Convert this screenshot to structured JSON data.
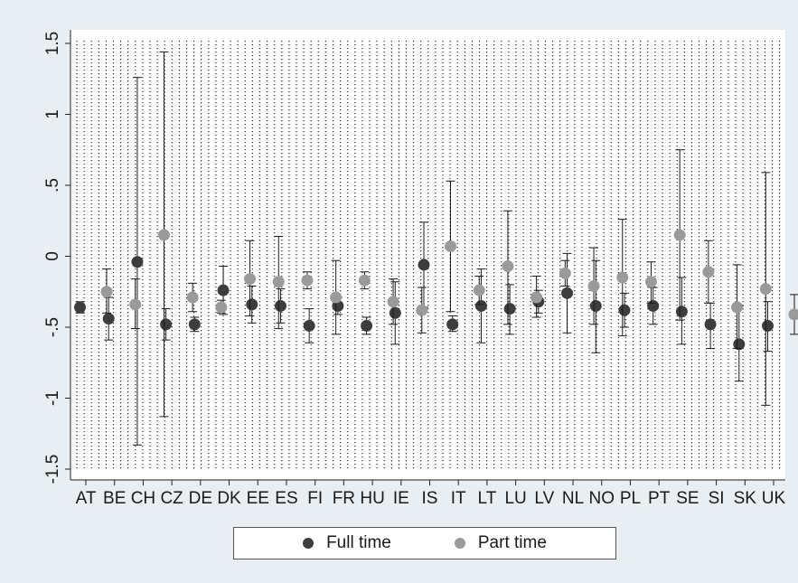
{
  "chart_data": {
    "type": "scatter",
    "title": "",
    "xlabel": "",
    "ylabel": "",
    "ylim": [
      -1.5,
      1.5
    ],
    "yticks": [
      -1.5,
      -1,
      -0.5,
      0,
      0.5,
      1,
      1.5
    ],
    "ytick_labels": [
      "-1.5",
      "-1",
      "-.5",
      "0",
      ".5",
      "1",
      "1.5"
    ],
    "categories": [
      "AT",
      "BE",
      "CH",
      "CZ",
      "DE",
      "DK",
      "EE",
      "ES",
      "FI",
      "FR",
      "HU",
      "IE",
      "IS",
      "IT",
      "LT",
      "LU",
      "LV",
      "NL",
      "NO",
      "PL",
      "PT",
      "SE",
      "SI",
      "SK",
      "UK"
    ],
    "grid": true,
    "legend_position": "bottom",
    "colors": {
      "full_time": "#3d3d3d",
      "part_time": "#9a9a9a",
      "errorbar": "#1a1a1a",
      "background": "#e8eef2",
      "plot_area": "#ffffff"
    },
    "series": [
      {
        "name": "Full time",
        "values": [
          -0.36,
          -0.44,
          -0.04,
          -0.48,
          -0.48,
          -0.24,
          -0.34,
          -0.35,
          -0.49,
          -0.35,
          -0.49,
          -0.4,
          -0.06,
          -0.48,
          -0.35,
          -0.37,
          -0.32,
          -0.26,
          -0.35,
          -0.38,
          -0.35,
          -0.39,
          -0.48,
          -0.62,
          -0.49
        ],
        "lower": [
          -0.4,
          -0.59,
          -1.33,
          -0.59,
          -0.53,
          -0.41,
          -0.47,
          -0.47,
          -0.61,
          -0.41,
          -0.55,
          -0.62,
          -0.36,
          -0.53,
          -0.61,
          -0.55,
          -0.4,
          -0.54,
          -0.68,
          -0.5,
          -0.48,
          -0.62,
          -0.65,
          -0.88,
          -0.67
        ],
        "upper": [
          -0.32,
          -0.29,
          1.26,
          -0.37,
          -0.43,
          -0.07,
          -0.21,
          -0.23,
          -0.37,
          -0.29,
          -0.43,
          -0.18,
          0.24,
          -0.42,
          -0.09,
          -0.2,
          -0.24,
          0.02,
          -0.03,
          -0.26,
          -0.22,
          -0.15,
          -0.33,
          -0.35,
          -0.32
        ]
      },
      {
        "name": "Part time",
        "values": [
          -0.25,
          -0.34,
          0.15,
          -0.29,
          -0.36,
          -0.16,
          -0.18,
          -0.17,
          -0.29,
          -0.17,
          -0.32,
          -0.38,
          0.07,
          -0.24,
          -0.07,
          -0.29,
          -0.12,
          -0.21,
          -0.15,
          -0.18,
          0.15,
          -0.11,
          -0.36,
          -0.23,
          -0.41
        ],
        "lower": [
          -0.4,
          -0.51,
          -1.13,
          -0.39,
          -0.4,
          -0.42,
          -0.51,
          -0.23,
          -0.55,
          -0.23,
          -0.48,
          -0.54,
          -0.39,
          -0.34,
          -0.48,
          -0.43,
          -0.21,
          -0.48,
          -0.56,
          -0.33,
          -0.45,
          -0.33,
          -0.65,
          -1.05,
          -0.55
        ],
        "upper": [
          -0.09,
          -0.16,
          1.44,
          -0.19,
          -0.31,
          0.11,
          0.14,
          -0.11,
          -0.03,
          -0.11,
          -0.16,
          -0.22,
          0.53,
          -0.14,
          0.32,
          -0.14,
          -0.03,
          0.06,
          0.26,
          -0.04,
          0.75,
          0.11,
          -0.06,
          0.59,
          -0.27
        ]
      }
    ]
  },
  "legend": {
    "full_time_label": "Full time",
    "part_time_label": "Part time"
  }
}
